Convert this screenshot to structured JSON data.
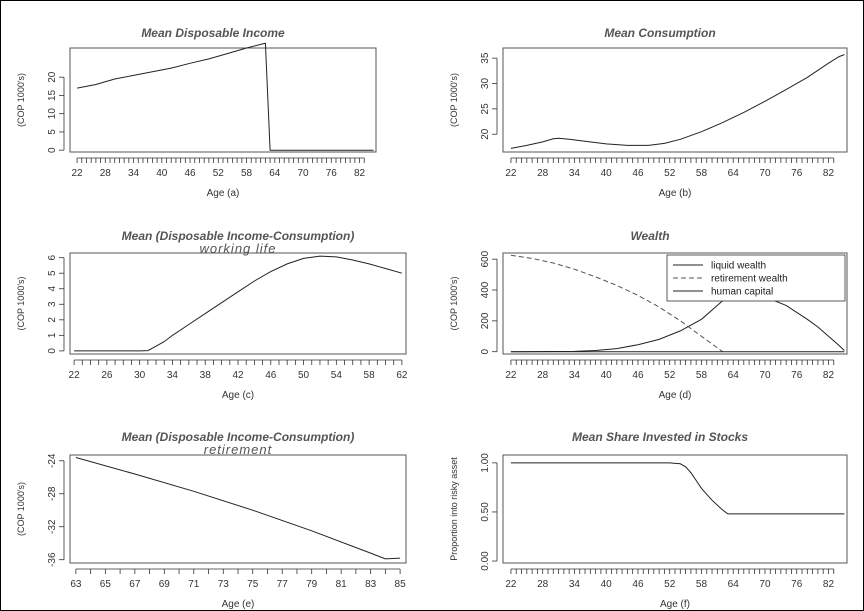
{
  "chart_data": [
    {
      "type": "line",
      "title": "Mean Disposable Income",
      "subtitle": "",
      "xlabel": "Age (a)",
      "ylabel": "(COP 1000's)",
      "xlim": [
        20.5,
        85.5
      ],
      "ylim": [
        -0.5,
        28
      ],
      "xticks": [
        22,
        28,
        34,
        40,
        46,
        52,
        58,
        64,
        70,
        76,
        82
      ],
      "yticks": [
        0,
        5,
        10,
        15,
        20
      ],
      "series": [
        {
          "x": [
            22,
            26,
            30,
            34,
            38,
            42,
            46,
            50,
            54,
            58,
            61,
            62,
            63,
            85
          ],
          "values": [
            17,
            18,
            19.5,
            20.5,
            21.5,
            22.5,
            23.8,
            25,
            26.5,
            28,
            29,
            29.3,
            0,
            0
          ]
        }
      ]
    },
    {
      "type": "line",
      "title": "Mean Consumption",
      "subtitle": "",
      "xlabel": "Age (b)",
      "ylabel": "(COP 1000's)",
      "xlim": [
        20.5,
        85.5
      ],
      "ylim": [
        16.5,
        37
      ],
      "xticks": [
        22,
        28,
        34,
        40,
        46,
        52,
        58,
        64,
        70,
        76,
        82
      ],
      "yticks": [
        20,
        25,
        30,
        35
      ],
      "series": [
        {
          "x": [
            22,
            25,
            28,
            30,
            31,
            33,
            36,
            40,
            44,
            48,
            51,
            54,
            58,
            62,
            66,
            70,
            74,
            78,
            82,
            84,
            85
          ],
          "values": [
            17.2,
            17.8,
            18.5,
            19.1,
            19.2,
            19,
            18.6,
            18.1,
            17.8,
            17.8,
            18.2,
            19,
            20.5,
            22.3,
            24.3,
            26.5,
            28.8,
            31.2,
            34,
            35.3,
            35.7
          ]
        }
      ]
    },
    {
      "type": "line",
      "title": "Mean (Disposable Income-Consumption)",
      "subtitle": "working life",
      "xlabel": "Age (c)",
      "ylabel": "(COP 1000's)",
      "xlim": [
        21.5,
        62.5
      ],
      "ylim": [
        -0.2,
        6.3
      ],
      "xticks": [
        22,
        26,
        30,
        34,
        38,
        42,
        46,
        50,
        54,
        58,
        62
      ],
      "yticks": [
        0,
        1,
        2,
        3,
        4,
        5,
        6
      ],
      "series": [
        {
          "x": [
            22,
            24,
            26,
            28,
            30,
            31,
            32,
            33,
            34,
            36,
            38,
            40,
            42,
            44,
            46,
            48,
            50,
            52,
            54,
            56,
            58,
            60,
            62
          ],
          "values": [
            0,
            0,
            0,
            0,
            0,
            0.02,
            0.3,
            0.6,
            1,
            1.7,
            2.4,
            3.1,
            3.8,
            4.5,
            5.1,
            5.6,
            5.95,
            6.1,
            6.05,
            5.85,
            5.6,
            5.3,
            5
          ]
        }
      ]
    },
    {
      "type": "line",
      "title": "Wealth",
      "subtitle": "",
      "xlabel": "Age (d)",
      "ylabel": "(COP 1000's)",
      "xlim": [
        20.5,
        85.5
      ],
      "ylim": [
        -15,
        640
      ],
      "xticks": [
        22,
        28,
        34,
        40,
        46,
        52,
        58,
        64,
        70,
        76,
        82
      ],
      "yticks": [
        0,
        200,
        400,
        600
      ],
      "legend": {
        "position": "top-right",
        "entries": [
          "liquid wealth",
          "retirement wealth",
          "human capital"
        ]
      },
      "series": [
        {
          "name": "liquid wealth",
          "style": "solid",
          "x": [
            22,
            34,
            38,
            42,
            46,
            50,
            54,
            58,
            62,
            64,
            66,
            70,
            74,
            78,
            80,
            82,
            84,
            85
          ],
          "values": [
            0,
            2,
            8,
            20,
            45,
            80,
            135,
            210,
            330,
            380,
            375,
            355,
            300,
            210,
            160,
            100,
            40,
            8
          ]
        },
        {
          "name": "retirement wealth",
          "style": "dashed",
          "x": [
            22,
            26,
            30,
            34,
            38,
            42,
            46,
            50,
            54,
            58,
            62
          ],
          "values": [
            625,
            605,
            575,
            535,
            485,
            430,
            365,
            290,
            200,
            100,
            0
          ]
        },
        {
          "name": "human capital",
          "style": "solid",
          "x": [
            22,
            85
          ],
          "values": [
            0,
            0
          ]
        }
      ]
    },
    {
      "type": "line",
      "title": "Mean (Disposable Income-Consumption)",
      "subtitle": "retirement",
      "xlabel": "Age (e)",
      "ylabel": "(COP 1000's)",
      "xlim": [
        62.6,
        85.4
      ],
      "ylim": [
        -36.4,
        -23.3
      ],
      "xticks": [
        63,
        65,
        67,
        69,
        71,
        73,
        75,
        77,
        79,
        81,
        83,
        85
      ],
      "yticks": [
        -24,
        -28,
        -32,
        -36
      ],
      "series": [
        {
          "x": [
            63,
            67,
            71,
            75,
            79,
            83,
            84,
            85
          ],
          "values": [
            -23.6,
            -25.6,
            -27.7,
            -30,
            -32.5,
            -35.2,
            -35.9,
            -35.8
          ]
        }
      ]
    },
    {
      "type": "line",
      "title": "Mean Share Invested in Stocks",
      "subtitle": "",
      "xlabel": "Age (f)",
      "ylabel": "Proportion into risky asset",
      "xlim": [
        20.5,
        85.5
      ],
      "ylim": [
        -0.02,
        1.08
      ],
      "xticks": [
        22,
        28,
        34,
        40,
        46,
        52,
        58,
        64,
        70,
        76,
        82
      ],
      "yticks": [
        0,
        0.5,
        1
      ],
      "ytick_labels": [
        "0.00",
        "0.50",
        "1.00"
      ],
      "series": [
        {
          "x": [
            22,
            52,
            54,
            55,
            56,
            57,
            58,
            60,
            62,
            63,
            85
          ],
          "values": [
            1,
            1,
            0.99,
            0.96,
            0.9,
            0.82,
            0.74,
            0.62,
            0.52,
            0.48,
            0.48
          ]
        }
      ]
    }
  ]
}
